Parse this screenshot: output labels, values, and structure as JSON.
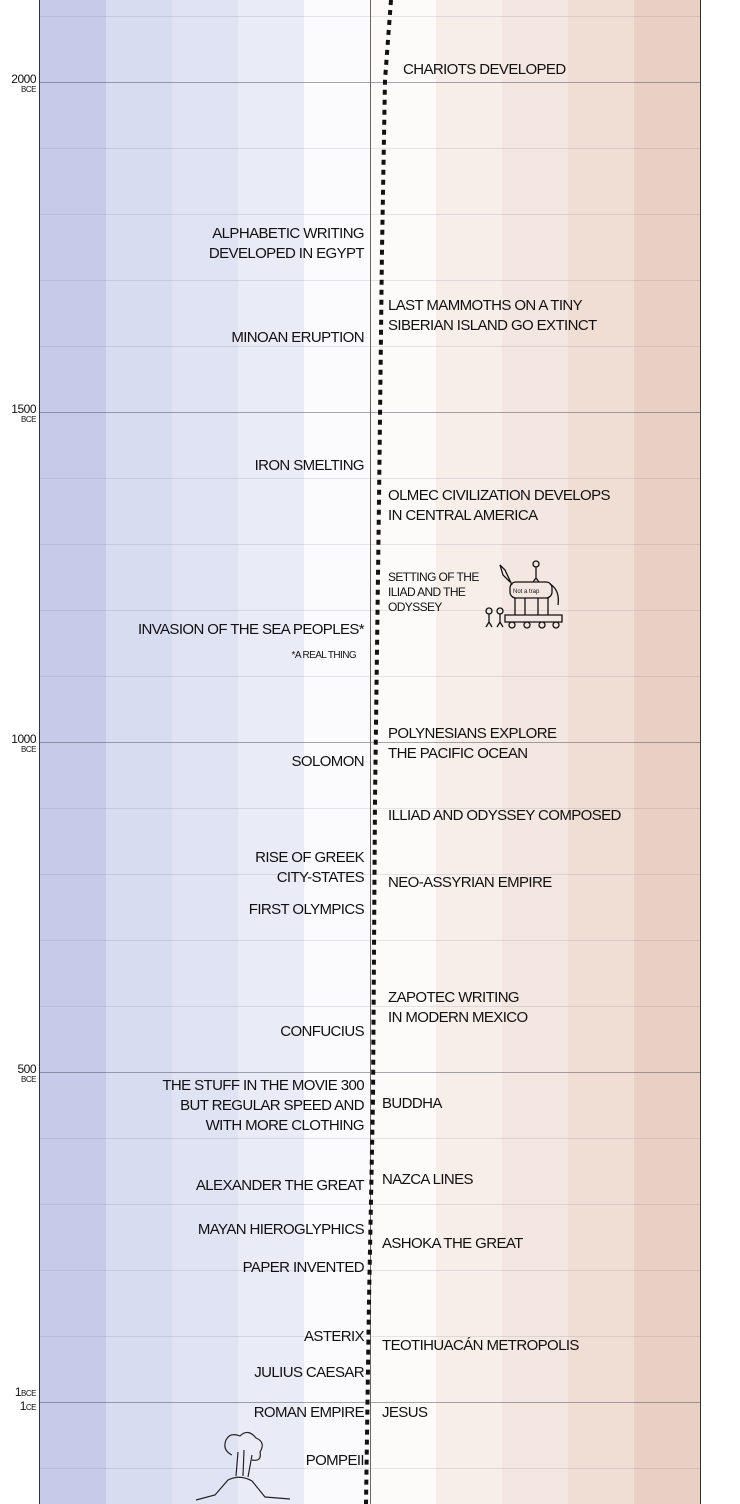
{
  "colors": {
    "bands": [
      "#c6cbea",
      "#d8dcf1",
      "#e0e3f4",
      "#e9ebf7",
      "#fbfbfe",
      "#fdfafa",
      "#f7ede9",
      "#f4e6e0",
      "#f0ddd4",
      "#e9d0c4"
    ],
    "dots": "#111111"
  },
  "axis": {
    "labels": [
      {
        "year": "2000",
        "era": "BCE"
      },
      {
        "year": "1500",
        "era": "BCE"
      },
      {
        "year": "1000",
        "era": "BCE"
      },
      {
        "year": "500",
        "era": "BCE"
      },
      {
        "year": "1",
        "era": "BCE"
      },
      {
        "year": "1",
        "era": "CE"
      }
    ]
  },
  "events": {
    "left": [
      "Alphabetic writing\ndeveloped in Egypt",
      "Minoan eruption",
      "Iron smelting",
      "Invasion of the Sea Peoples*",
      "*A real thing",
      "Solomon",
      "Rise of Greek\ncity-states",
      "First Olympics",
      "Confucius",
      "The stuff in the movie 300\nbut regular speed and\nwith more clothing",
      "Alexander the Great",
      "Mayan hieroglyphics",
      "Paper invented",
      "Asterix",
      "Julius Caesar",
      "Roman Empire",
      "Pompeii"
    ],
    "right": [
      "Chariots developed",
      "Last mammoths on a tiny\nSiberian island go extinct",
      "Olmec civilization develops\nin Central America",
      "Setting of the\nIliad and the\nOdyssey",
      "Polynesians explore\nthe Pacific Ocean",
      "Illiad and Odyssey composed",
      "Neo-Assyrian Empire",
      "Zapotec writing\nin modern Mexico",
      "Buddha",
      "Nazca lines",
      "Ashoka the Great",
      "Teotihuacán metropolis",
      "Jesus"
    ]
  },
  "drawings": {
    "horse_sign": "Not a trap",
    "horse_icon": "trojan-horse-icon",
    "volcano_icon": "volcano-icon"
  }
}
